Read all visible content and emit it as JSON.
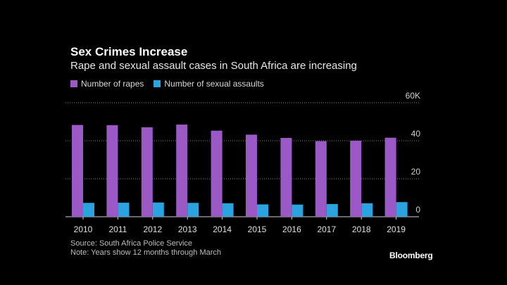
{
  "header": {
    "title": "Sex Crimes Increase",
    "subtitle": "Rape and sexual assault cases in South Africa are increasing"
  },
  "footer": {
    "source": "Source: South Africa Police Service",
    "note": "Note: Years show 12 months through March",
    "brand": "Bloomberg"
  },
  "colors": {
    "rapes": "#9b59c6",
    "assaults": "#2aa3df",
    "background": "#000000",
    "gridline": "#8a8a8a"
  },
  "chart_data": {
    "type": "bar",
    "title": "Sex Crimes Increase",
    "subtitle": "Rape and sexual assault cases in South Africa are increasing",
    "categories": [
      "2010",
      "2011",
      "2012",
      "2013",
      "2014",
      "2015",
      "2016",
      "2017",
      "2018",
      "2019"
    ],
    "series": [
      {
        "name": "Number of rapes",
        "values": [
          48300,
          48200,
          47100,
          48500,
          45300,
          43200,
          41500,
          39800,
          40000,
          41600
        ]
      },
      {
        "name": "Number of sexual assaults",
        "values": [
          7300,
          7400,
          7500,
          7300,
          7100,
          6500,
          6400,
          6700,
          7100,
          7700
        ]
      }
    ],
    "y_ticks": [
      "60K",
      "40",
      "20",
      "0"
    ],
    "y_tick_values": [
      60000,
      40000,
      20000,
      0
    ],
    "ylim": [
      0,
      60000
    ],
    "xlabel": "",
    "ylabel": "",
    "grid": true,
    "legend": "top-left"
  }
}
